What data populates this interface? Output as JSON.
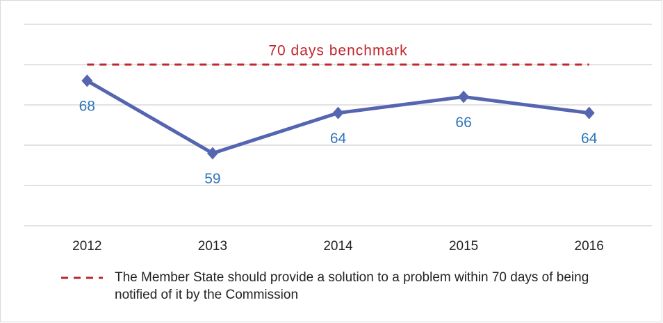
{
  "chart_data": {
    "type": "line",
    "categories": [
      "2012",
      "2013",
      "2014",
      "2015",
      "2016"
    ],
    "values": [
      68,
      59,
      64,
      66,
      64
    ],
    "color": "#5565b0",
    "label_color": "#2e75b6",
    "ylim": [
      50,
      75
    ],
    "yticks": [
      50,
      55,
      60,
      65,
      70,
      75
    ],
    "grid": true,
    "benchmark": {
      "value": 70,
      "label": "70 days benchmark",
      "color": "#c0272d"
    },
    "legend": "The Member State should provide a solution to a problem within 70 days of being notified of it by the Commission"
  }
}
